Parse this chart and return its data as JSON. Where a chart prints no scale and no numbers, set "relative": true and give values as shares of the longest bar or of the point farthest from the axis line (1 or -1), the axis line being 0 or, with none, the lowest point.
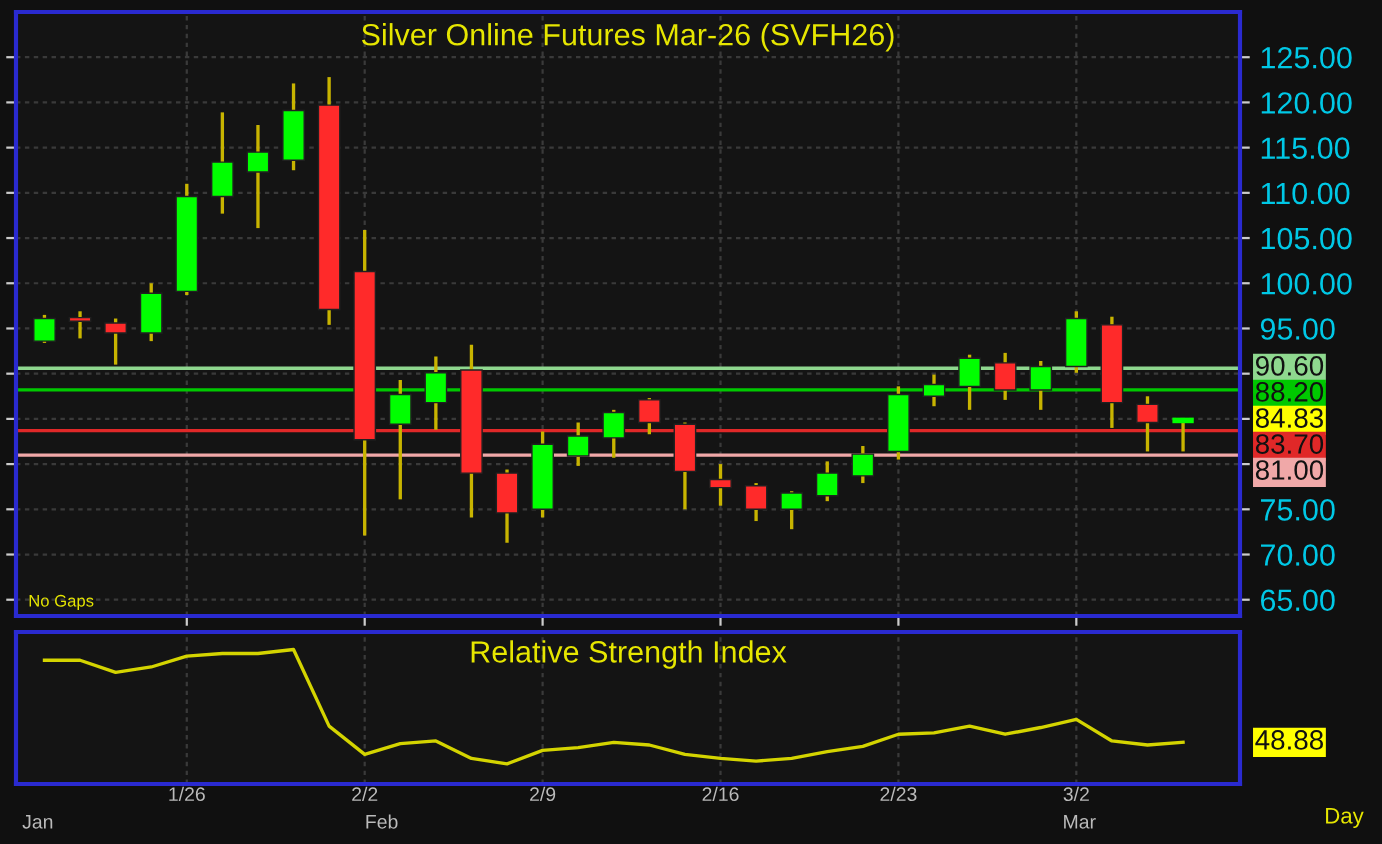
{
  "chart_data": [
    {
      "type": "candlestick",
      "title": "Silver Online Futures Mar-26 (SVFH26)",
      "categories": [
        null,
        null,
        null,
        null,
        null,
        null,
        null,
        null,
        null,
        null,
        null,
        null,
        null,
        null,
        null,
        null,
        null,
        null,
        null,
        null,
        null,
        null,
        null,
        null,
        null,
        null,
        null,
        null,
        null,
        null,
        null,
        null,
        null
      ],
      "ohlc": [
        [
          93.6,
          96.5,
          93.4,
          96.1
        ],
        [
          96.2,
          96.9,
          93.9,
          95.8
        ],
        [
          95.6,
          96.1,
          91.0,
          94.5
        ],
        [
          94.5,
          100.0,
          93.6,
          98.9
        ],
        [
          99.1,
          111.0,
          98.7,
          109.6
        ],
        [
          109.6,
          118.9,
          107.7,
          113.4
        ],
        [
          112.3,
          117.5,
          106.1,
          114.5
        ],
        [
          113.6,
          122.1,
          112.5,
          119.1
        ],
        [
          119.7,
          122.8,
          95.4,
          97.1
        ],
        [
          101.3,
          105.9,
          72.1,
          82.7
        ],
        [
          84.4,
          89.3,
          76.1,
          87.7
        ],
        [
          86.8,
          91.9,
          83.8,
          90.1
        ],
        [
          90.4,
          93.2,
          74.1,
          79.0
        ],
        [
          79.0,
          79.4,
          71.3,
          74.6
        ],
        [
          75.0,
          83.6,
          74.1,
          82.2
        ],
        [
          80.9,
          84.6,
          79.8,
          83.1
        ],
        [
          82.9,
          86.0,
          80.7,
          85.7
        ],
        [
          87.1,
          87.3,
          83.3,
          84.6
        ],
        [
          84.4,
          84.6,
          75.0,
          79.2
        ],
        [
          78.3,
          80.0,
          75.4,
          77.4
        ],
        [
          77.6,
          77.9,
          73.7,
          75.0
        ],
        [
          75.0,
          77.0,
          72.8,
          76.8
        ],
        [
          76.5,
          80.3,
          75.9,
          79.0
        ],
        [
          78.7,
          82.0,
          77.9,
          81.1
        ],
        [
          81.4,
          88.6,
          80.5,
          87.7
        ],
        [
          87.5,
          89.9,
          86.4,
          88.8
        ],
        [
          88.6,
          92.1,
          86.0,
          91.7
        ],
        [
          91.2,
          92.3,
          87.1,
          88.2
        ],
        [
          88.2,
          91.4,
          86.0,
          90.8
        ],
        [
          90.8,
          96.9,
          90.1,
          96.1
        ],
        [
          95.4,
          96.3,
          84.0,
          86.8
        ],
        [
          86.6,
          87.5,
          81.4,
          84.6
        ],
        [
          84.83,
          85.1,
          81.4,
          84.83
        ]
      ],
      "colors": [
        "#00ff00",
        "#ff2a2a",
        "#ff2a2a",
        "#00ff00",
        "#00ff00",
        "#00ff00",
        "#00ff00",
        "#00ff00",
        "#ff2a2a",
        "#ff2a2a",
        "#00ff00",
        "#00ff00",
        "#ff2a2a",
        "#ff2a2a",
        "#00ff00",
        "#00ff00",
        "#00ff00",
        "#ff2a2a",
        "#ff2a2a",
        "#ff2a2a",
        "#ff2a2a",
        "#00ff00",
        "#00ff00",
        "#00ff00",
        "#00ff00",
        "#00ff00",
        "#00ff00",
        "#ff2a2a",
        "#00ff00",
        "#00ff00",
        "#ff2a2a",
        "#ff2a2a",
        "#00ff00"
      ],
      "ylim": [
        63.2,
        130
      ],
      "yticks": [
        {
          "value": 65,
          "label": "65.00"
        },
        {
          "value": 70,
          "label": "70.00"
        },
        {
          "value": 75,
          "label": "75.00"
        },
        {
          "value": 80,
          "label": null
        },
        {
          "value": 85,
          "label": null
        },
        {
          "value": 90,
          "label": null
        },
        {
          "value": 95,
          "label": "95.00"
        },
        {
          "value": 100,
          "label": "100.00"
        },
        {
          "value": 105,
          "label": "105.00"
        },
        {
          "value": 110,
          "label": "110.00"
        },
        {
          "value": 115,
          "label": "115.00"
        },
        {
          "value": 120,
          "label": "120.00"
        },
        {
          "value": 125,
          "label": "125.00"
        }
      ],
      "ref_lines": [
        {
          "axis": "y",
          "value": 90.6,
          "label": "90.60",
          "color": "#8fd88f"
        },
        {
          "axis": "y",
          "value": 88.2,
          "label": "88.20",
          "color": "#00c800"
        },
        {
          "axis": "y",
          "value": 83.7,
          "label": "83.70",
          "color": "#e02828"
        },
        {
          "axis": "y",
          "value": 81.0,
          "label": "81.00",
          "color": "#f0a8a8"
        }
      ],
      "annotations": [
        "No Gaps",
        "84.83"
      ],
      "grid": true,
      "tick_labels": "y"
    },
    {
      "type": "line",
      "title": "Relative Strength Index",
      "relative": true,
      "categories": [
        null,
        null,
        null,
        null,
        "1/26",
        null,
        null,
        null,
        null,
        "2/2",
        null,
        null,
        null,
        null,
        "2/9",
        null,
        null,
        null,
        null,
        "2/16",
        null,
        null,
        null,
        null,
        "2/23",
        null,
        null,
        null,
        null,
        "3/2",
        null,
        null,
        null
      ],
      "series": [
        {
          "color": "#d4d400",
          "values": [
            0.92,
            0.92,
            0.83,
            0.87,
            0.95,
            0.97,
            0.97,
            1.0,
            0.43,
            0.22,
            0.3,
            0.32,
            0.19,
            0.15,
            0.25,
            0.27,
            0.31,
            0.29,
            0.22,
            0.19,
            0.17,
            0.19,
            0.24,
            0.28,
            0.37,
            0.38,
            0.43,
            0.37,
            0.42,
            0.48,
            0.32,
            0.29,
            0.31
          ]
        }
      ],
      "annotations": [
        "48.88",
        "Day",
        "Jan",
        "Feb",
        "Mar"
      ],
      "grid": "x",
      "tick_labels": "x"
    }
  ]
}
